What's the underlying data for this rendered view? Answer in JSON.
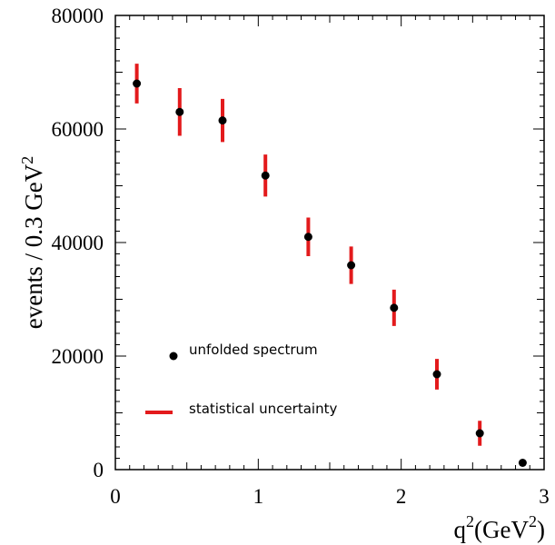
{
  "chart_data": {
    "type": "scatter",
    "x": [
      0.15,
      0.45,
      0.75,
      1.05,
      1.35,
      1.65,
      1.95,
      2.25,
      2.55,
      2.85
    ],
    "y": [
      68000,
      63000,
      61500,
      51800,
      41000,
      36000,
      28500,
      16800,
      6400,
      1200
    ],
    "yerr": [
      3500,
      4200,
      3800,
      3700,
      3400,
      3300,
      3200,
      2700,
      2200,
      0
    ],
    "xlim": [
      0,
      3
    ],
    "ylim": [
      0,
      80000
    ],
    "xticks": [
      "0",
      "1",
      "2",
      "3"
    ],
    "yticks": [
      "0",
      "20000",
      "40000",
      "60000",
      "80000"
    ],
    "xlabel": {
      "base": "q",
      "sup": "2",
      "unit_open": "(GeV",
      "unit_sup": "2",
      "unit_close": ")"
    },
    "ylabel": {
      "base": "events / 0.3 GeV",
      "sup": "2"
    },
    "grid": false,
    "legend": {
      "placement": "lower-left",
      "points_label": "unfolded spectrum",
      "errors_label": "statistical uncertainty"
    },
    "colors": {
      "points": "#000000",
      "errors": "#e31a1c",
      "axes": "#000000"
    }
  }
}
